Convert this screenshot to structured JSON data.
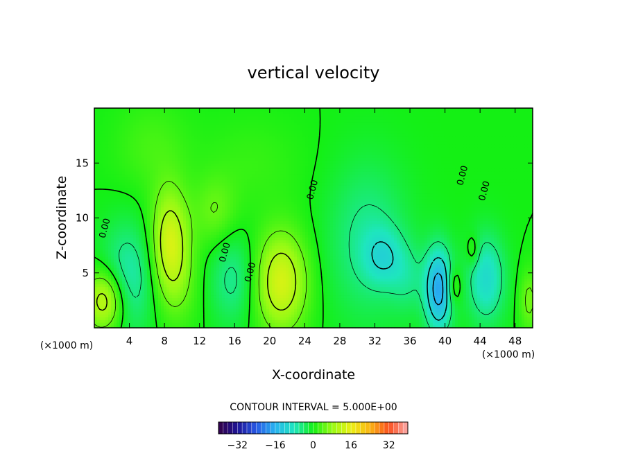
{
  "chart_data": {
    "type": "heatmap",
    "title": "vertical velocity",
    "xlabel": "X-coordinate",
    "ylabel": "Z-coordinate",
    "x_unit_label": "(×1000 m)",
    "y_unit_label": "(×1000 m)",
    "xlim": [
      0,
      50
    ],
    "ylim": [
      0,
      20
    ],
    "x_ticks": [
      4,
      8,
      12,
      16,
      20,
      24,
      28,
      32,
      36,
      40,
      44,
      48
    ],
    "y_ticks": [
      5,
      10,
      15
    ],
    "contour_interval_text": "CONTOUR INTERVAL = 5.000E+00",
    "contour_labels": [
      {
        "text": "0.00",
        "x": 1.5,
        "y": 9.0
      },
      {
        "text": "0.00",
        "x": 15.2,
        "y": 6.8
      },
      {
        "text": "0.00",
        "x": 18.1,
        "y": 5.0
      },
      {
        "text": "0.00",
        "x": 25.2,
        "y": 12.5
      },
      {
        "text": "0.00",
        "x": 42.3,
        "y": 13.8
      },
      {
        "text": "0.00",
        "x": 44.8,
        "y": 12.4
      }
    ],
    "colorbar": {
      "min": -40,
      "max": 40,
      "ticks": [
        -32,
        -16,
        0,
        16,
        32
      ],
      "tick_labels": [
        "−32",
        "−16",
        "0",
        "16",
        "32"
      ]
    },
    "features": [
      {
        "x": 1.2,
        "z": 2.5,
        "sx": 1.6,
        "sz": 2.0,
        "w": 14
      },
      {
        "x": 3.8,
        "z": 4.5,
        "sx": 2.2,
        "sz": 3.5,
        "w": -8
      },
      {
        "x": 8.6,
        "z": 8.0,
        "sx": 1.5,
        "sz": 3.3,
        "w": 13
      },
      {
        "x": 9.5,
        "z": 4.0,
        "sx": 1.8,
        "sz": 3.0,
        "w": 4
      },
      {
        "x": 13.8,
        "z": 10.5,
        "sx": 1.8,
        "sz": 2.3,
        "w": 5
      },
      {
        "x": 15.8,
        "z": 4.5,
        "sx": 1.9,
        "sz": 3.0,
        "w": -6
      },
      {
        "x": 21.3,
        "z": 4.2,
        "sx": 2.1,
        "sz": 3.2,
        "w": 14
      },
      {
        "x": 31.2,
        "z": 8.0,
        "sx": 3.2,
        "sz": 5.0,
        "w": -6
      },
      {
        "x": 33.0,
        "z": 6.5,
        "sx": 1.6,
        "sz": 1.8,
        "w": -6
      },
      {
        "x": 35.8,
        "z": 4.5,
        "sx": 1.5,
        "sz": 2.2,
        "w": -4
      },
      {
        "x": 39.3,
        "z": 3.5,
        "sx": 1.1,
        "sz": 2.7,
        "w": -17
      },
      {
        "x": 41.0,
        "z": 3.8,
        "sx": 0.6,
        "sz": 1.2,
        "w": 6
      },
      {
        "x": 44.7,
        "z": 4.5,
        "sx": 1.5,
        "sz": 2.8,
        "w": -10
      },
      {
        "x": 43.2,
        "z": 7.0,
        "sx": 0.5,
        "sz": 1.0,
        "w": 5
      },
      {
        "x": 49.6,
        "z": 2.5,
        "sx": 0.8,
        "sz": 2.0,
        "w": 6
      },
      {
        "x": 6.5,
        "z": 16.5,
        "sx": 3.0,
        "sz": 3.0,
        "w": 3
      },
      {
        "x": 18.0,
        "z": 15.0,
        "sx": 4.0,
        "sz": 3.0,
        "w": 2
      }
    ]
  }
}
